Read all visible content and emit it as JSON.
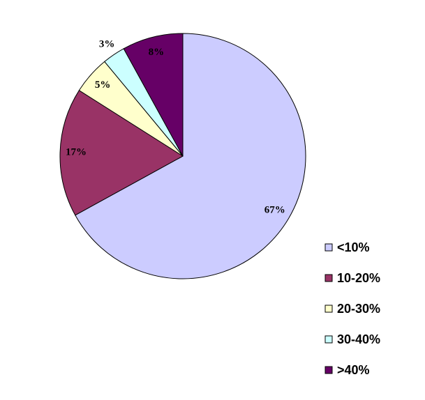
{
  "chart_data": {
    "type": "pie",
    "categories": [
      "<10%",
      "10-20%",
      "20-30%",
      "30-40%",
      ">40%"
    ],
    "values": [
      67,
      17,
      5,
      3,
      8
    ],
    "value_labels": [
      "67%",
      "17%",
      "5%",
      "3%",
      "8%"
    ],
    "colors": [
      "#ccccff",
      "#993366",
      "#ffffcc",
      "#ccffff",
      "#660066"
    ],
    "legend": "right"
  }
}
